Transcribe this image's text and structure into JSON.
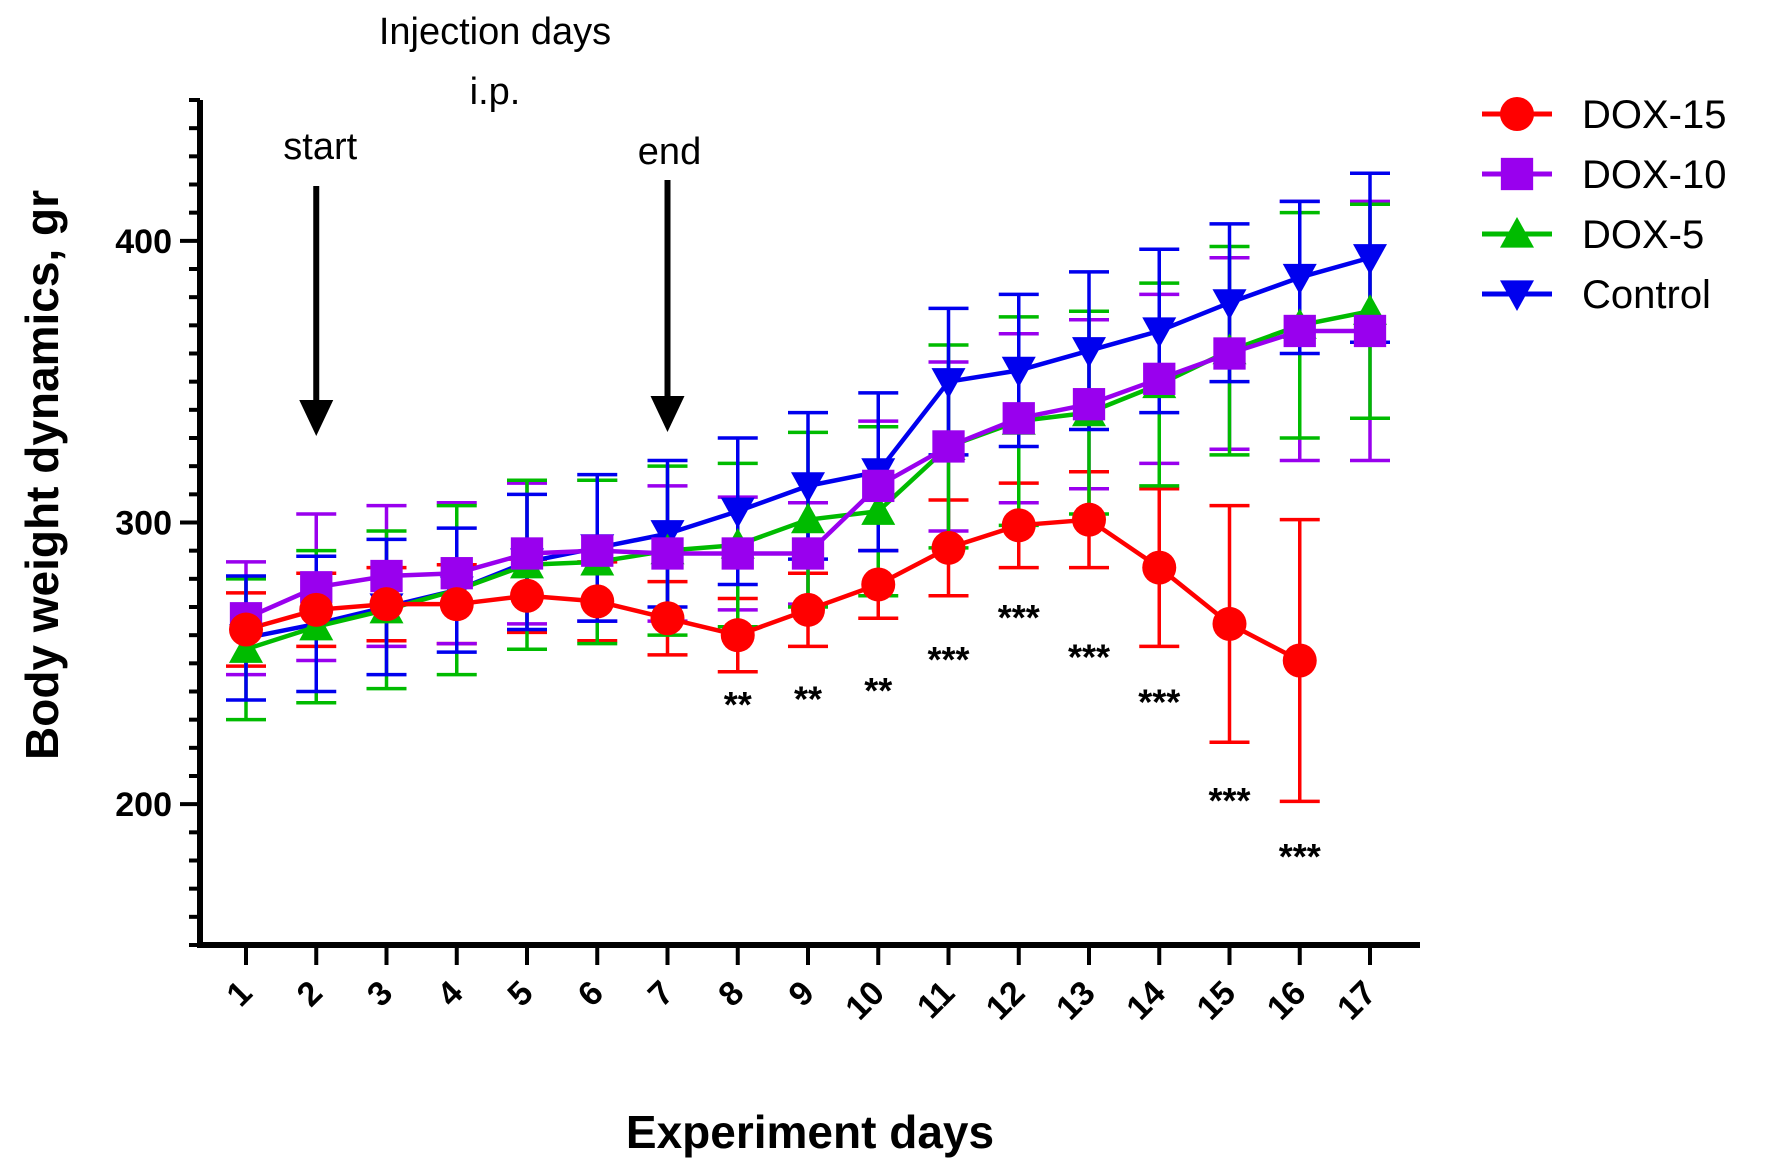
{
  "chart_data": {
    "type": "line",
    "xlabel": "Experiment days",
    "ylabel": "Body weight dynamics, gr",
    "x": [
      1,
      2,
      3,
      4,
      5,
      6,
      7,
      8,
      9,
      10,
      11,
      12,
      13,
      14,
      15,
      16,
      17
    ],
    "x_tick_labels": [
      "1",
      "2",
      "3",
      "4",
      "5",
      "6",
      "7",
      "8",
      "9",
      "10",
      "11",
      "12",
      "13",
      "14",
      "15",
      "16",
      "17"
    ],
    "ylim": [
      150,
      450
    ],
    "y_ticks": [
      200,
      300,
      400
    ],
    "y_tick_labels": [
      "200",
      "300",
      "400"
    ],
    "grid": false,
    "legend_position": "right",
    "series": [
      {
        "name": "DOX-15",
        "color": "#ff0000",
        "marker": "circle",
        "values": [
          262,
          269,
          271,
          271,
          274,
          272,
          266,
          260,
          269,
          278,
          291,
          299,
          301,
          284,
          264,
          251,
          null
        ],
        "errors": [
          13,
          13,
          13,
          14,
          13,
          14,
          13,
          13,
          13,
          12,
          17,
          15,
          17,
          28,
          42,
          50,
          null
        ]
      },
      {
        "name": "DOX-10",
        "color": "#9900ee",
        "marker": "square",
        "values": [
          266,
          277,
          281,
          282,
          289,
          290,
          289,
          289,
          289,
          313,
          327,
          337,
          342,
          351,
          360,
          368,
          368
        ],
        "errors": [
          20,
          26,
          25,
          25,
          25,
          25,
          24,
          20,
          18,
          23,
          30,
          30,
          30,
          30,
          34,
          46,
          46
        ]
      },
      {
        "name": "DOX-5",
        "color": "#00bb00",
        "marker": "triangle-up",
        "values": [
          255,
          263,
          269,
          276,
          285,
          286,
          290,
          292,
          301,
          304,
          327,
          336,
          339,
          349,
          361,
          370,
          375
        ],
        "errors": [
          25,
          27,
          28,
          30,
          30,
          29,
          30,
          29,
          31,
          30,
          36,
          37,
          36,
          36,
          37,
          40,
          38
        ]
      },
      {
        "name": "Control",
        "color": "#0000ee",
        "marker": "triangle-down",
        "values": [
          259,
          264,
          270,
          276,
          286,
          291,
          296,
          304,
          313,
          318,
          350,
          354,
          361,
          368,
          378,
          387,
          394
        ],
        "errors": [
          22,
          24,
          24,
          22,
          24,
          26,
          26,
          26,
          26,
          28,
          26,
          27,
          28,
          29,
          28,
          27,
          30
        ]
      }
    ],
    "annotations": {
      "injection_title_line1": "Injection days",
      "injection_title_line2": "i.p.",
      "start_label": "start",
      "start_day": 2,
      "end_label": "end",
      "end_day": 7
    },
    "significance": [
      {
        "day": 8,
        "label": "**",
        "value": 238
      },
      {
        "day": 9,
        "label": "**",
        "value": 240
      },
      {
        "day": 10,
        "label": "**",
        "value": 243
      },
      {
        "day": 11,
        "label": "***",
        "value": 254
      },
      {
        "day": 12,
        "label": "***",
        "value": 269
      },
      {
        "day": 13,
        "label": "***",
        "value": 255
      },
      {
        "day": 14,
        "label": "***",
        "value": 239
      },
      {
        "day": 15,
        "label": "***",
        "value": 204
      },
      {
        "day": 16,
        "label": "***",
        "value": 184
      }
    ]
  }
}
